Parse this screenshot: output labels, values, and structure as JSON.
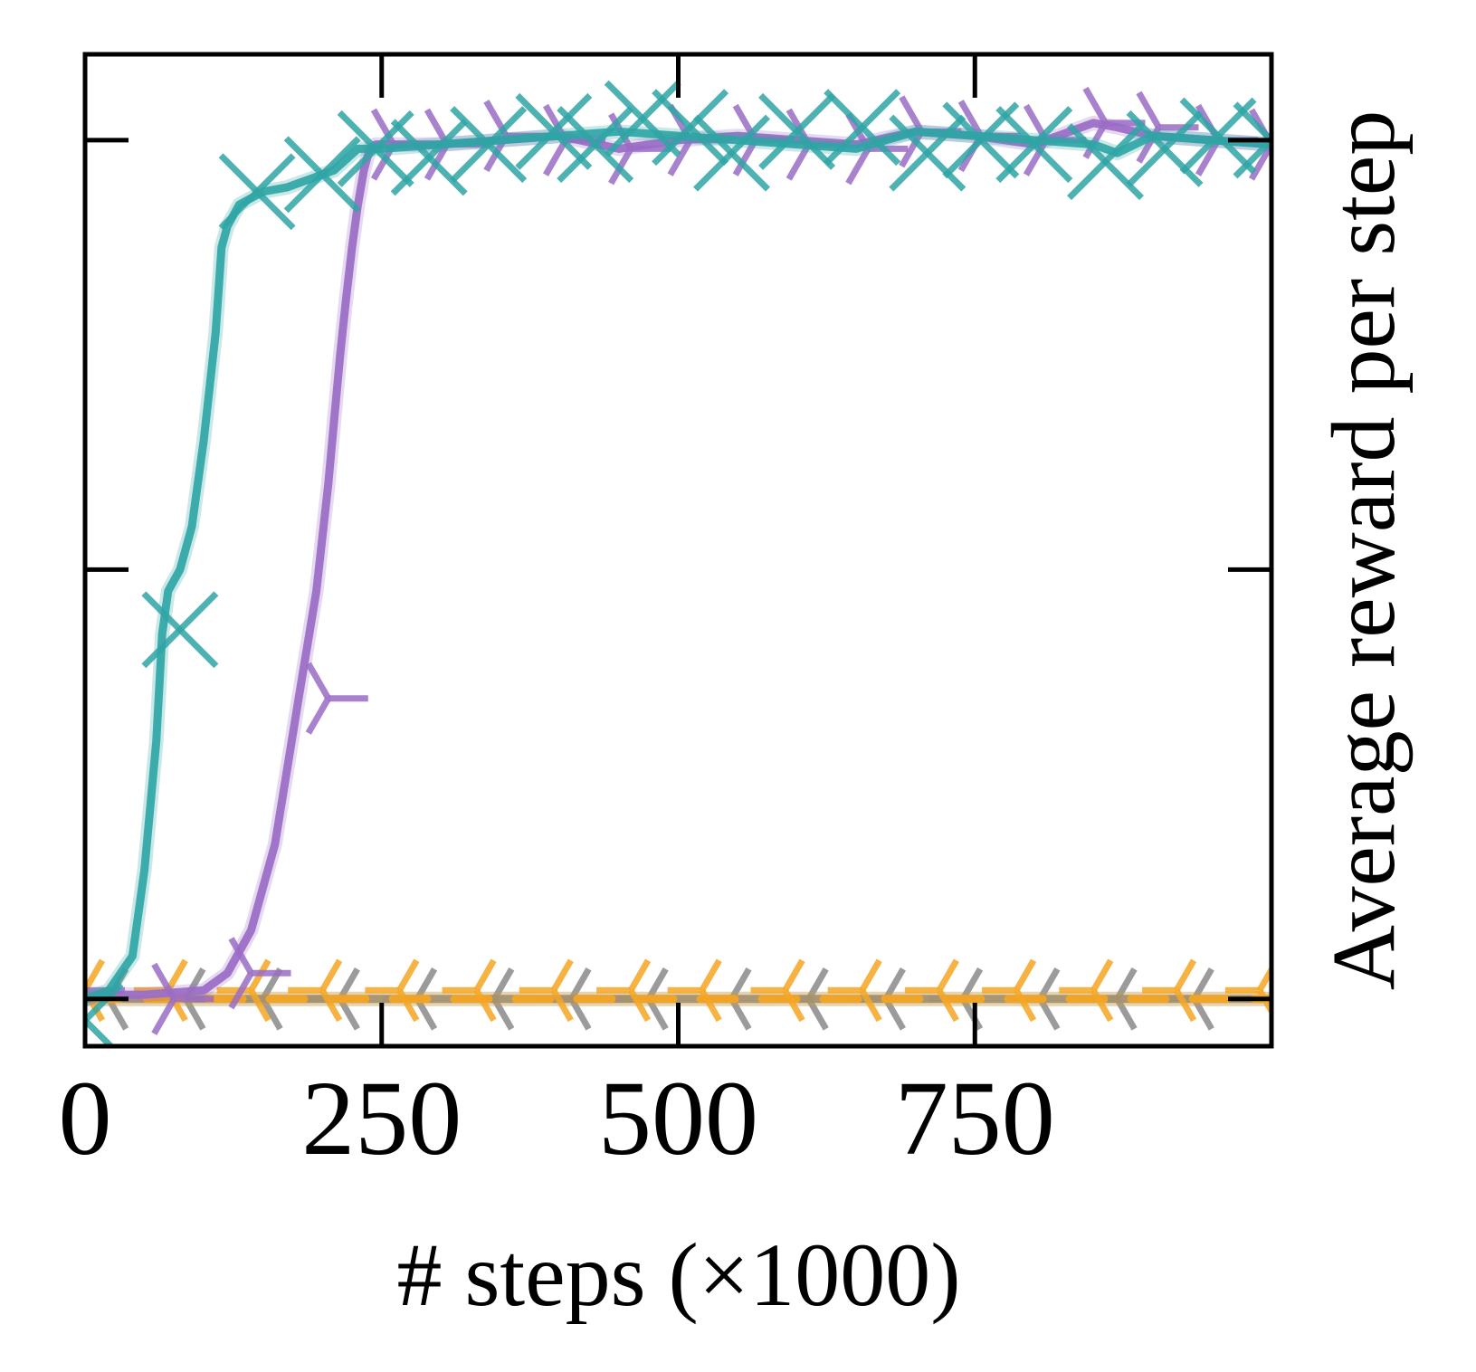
{
  "chart_data": {
    "type": "line",
    "xlabel": "# steps (×1000)",
    "ylabel": "Average reward per step",
    "xlim": [
      0,
      1000
    ],
    "ylim": [
      -0.11,
      2.2
    ],
    "x_ticks": [
      0,
      250,
      500,
      750
    ],
    "x_tick_labels": [
      "0",
      "250",
      "500",
      "750"
    ],
    "y_ticks": [
      0,
      1,
      2
    ],
    "y_tick_labels_shown": false,
    "y_axis_label_side": "right",
    "grid": false,
    "legend": "none",
    "series": [
      {
        "color": "#2fa5a5",
        "marker": "x",
        "x": [
          0,
          20,
          40,
          50,
          60,
          65,
          70,
          80,
          90,
          95,
          100,
          110,
          115,
          120,
          130,
          150,
          170,
          190,
          210,
          230,
          250,
          300,
          350,
          400,
          450,
          500,
          550,
          600,
          650,
          700,
          750,
          800,
          850,
          870,
          900,
          950,
          1000
        ],
        "y": [
          0.0,
          0.02,
          0.1,
          0.3,
          0.6,
          0.85,
          0.95,
          1.0,
          1.1,
          1.2,
          1.3,
          1.55,
          1.75,
          1.8,
          1.85,
          1.88,
          1.89,
          1.91,
          1.93,
          1.98,
          1.98,
          1.99,
          2.0,
          2.01,
          2.02,
          2.01,
          2.0,
          1.99,
          1.98,
          2.02,
          2.01,
          2.0,
          1.99,
          1.97,
          2.01,
          2.0,
          1.99
        ],
        "markers_x": [
          0,
          80,
          145,
          200,
          245,
          290,
          340,
          395,
          430,
          470,
          510,
          545,
          600,
          655,
          710,
          755,
          800,
          860,
          910,
          955,
          1000
        ],
        "markers_y": [
          -0.05,
          0.86,
          1.88,
          1.92,
          1.98,
          1.96,
          1.99,
          2.02,
          1.99,
          2.05,
          2.03,
          1.97,
          2.02,
          2.03,
          1.97,
          2.0,
          1.99,
          1.95,
          1.98,
          2.01,
          2.0
        ]
      },
      {
        "color": "#9a6cc6",
        "marker": "tri_right",
        "x": [
          0,
          20,
          50,
          100,
          120,
          140,
          160,
          180,
          195,
          205,
          210,
          215,
          220,
          225,
          230,
          235,
          240,
          245,
          250,
          300,
          350,
          400,
          450,
          500,
          550,
          600,
          650,
          700,
          750,
          800,
          850,
          870,
          900,
          950,
          1000
        ],
        "y": [
          0.0,
          0.01,
          0.01,
          0.02,
          0.06,
          0.16,
          0.36,
          0.7,
          0.95,
          1.2,
          1.35,
          1.5,
          1.63,
          1.75,
          1.85,
          1.93,
          1.98,
          1.99,
          1.99,
          1.99,
          2.0,
          2.01,
          1.98,
          2.0,
          2.01,
          2.0,
          1.99,
          2.02,
          2.01,
          1.99,
          2.04,
          2.03,
          2.01,
          2.0,
          1.99
        ],
        "markers_x": [
          0,
          75,
          140,
          205,
          260,
          305,
          355,
          405,
          460,
          510,
          565,
          610,
          660,
          705,
          755,
          810,
          860,
          905,
          955,
          1000
        ],
        "markers_y": [
          0.02,
          0.0,
          0.06,
          0.7,
          1.99,
          1.99,
          2.01,
          2.0,
          1.98,
          2.0,
          2.0,
          1.99,
          1.98,
          2.02,
          2.01,
          2.0,
          2.04,
          2.03,
          2.0,
          1.99
        ]
      },
      {
        "color": "#f5a623",
        "marker": "tri_left",
        "x": [
          0,
          1000
        ],
        "y": [
          0.0,
          0.0
        ],
        "markers_x": [
          0,
          70,
          140,
          200,
          265,
          330,
          395,
          460,
          520,
          590,
          655,
          720,
          785,
          850,
          920,
          990
        ],
        "markers_y": [
          0.02,
          0.02,
          0.02,
          0.02,
          0.02,
          0.02,
          0.02,
          0.02,
          0.02,
          0.02,
          0.02,
          0.02,
          0.02,
          0.02,
          0.02,
          0.02
        ]
      },
      {
        "color": "#8a8a8a",
        "marker": "tri_left",
        "x": [
          0,
          1000
        ],
        "y": [
          0.0,
          0.0
        ],
        "markers_x": [
          20,
          85,
          150,
          215,
          280,
          345,
          410,
          475,
          545,
          610,
          675,
          740,
          805,
          870,
          935
        ],
        "markers_y": [
          0.0,
          0.0,
          0.0,
          0.0,
          0.0,
          0.0,
          0.0,
          0.0,
          0.0,
          0.0,
          0.0,
          0.0,
          0.0,
          0.0,
          0.0
        ]
      }
    ]
  }
}
